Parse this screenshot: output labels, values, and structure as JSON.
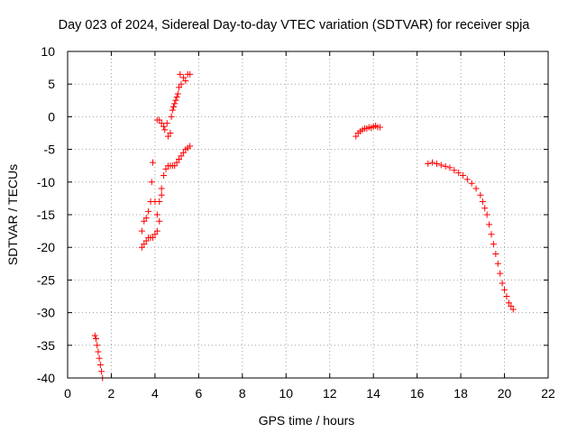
{
  "chart_data": {
    "type": "scatter",
    "title": "Day 023 of 2024, Sidereal Day-to-day VTEC variation (SDTVAR) for receiver spja",
    "xlabel": "GPS time / hours",
    "ylabel": "SDTVAR / TECUs",
    "xlim": [
      0,
      22
    ],
    "ylim": [
      -40,
      10
    ],
    "xticks": [
      0,
      2,
      4,
      6,
      8,
      10,
      12,
      14,
      16,
      18,
      20,
      22
    ],
    "yticks": [
      10,
      5,
      0,
      -5,
      -10,
      -15,
      -20,
      -25,
      -30,
      -35,
      -40
    ],
    "grid": true,
    "marker": "+",
    "color": "#ff0000",
    "series": [
      {
        "name": "segment-1",
        "x": [
          1.25,
          1.3,
          1.35,
          1.4,
          1.45,
          1.5,
          1.55,
          1.6
        ],
        "y": [
          -33.5,
          -34.0,
          -35.0,
          -36.0,
          -37.0,
          -38.0,
          -39.0,
          -40.0
        ]
      },
      {
        "name": "segment-2-lower",
        "x": [
          3.4,
          3.5,
          3.6,
          3.7,
          3.8,
          3.9,
          4.0,
          4.1,
          4.2,
          4.3,
          4.4,
          4.5,
          4.6,
          4.7,
          4.8,
          4.9,
          5.0,
          5.1,
          5.2,
          5.3,
          5.4,
          5.5,
          5.6
        ],
        "y": [
          -20.0,
          -19.5,
          -19.0,
          -18.5,
          -18.5,
          -18.5,
          -18.0,
          -17.5,
          -16.0,
          -12.0,
          -9.0,
          -8.0,
          -7.5,
          -7.5,
          -7.5,
          -7.5,
          -7.0,
          -6.5,
          -6.0,
          -5.5,
          -5.0,
          -4.8,
          -4.5
        ]
      },
      {
        "name": "segment-2-upper",
        "x": [
          3.4,
          3.5,
          3.6,
          3.7,
          3.8,
          3.85,
          3.9,
          4.0,
          4.1,
          4.2,
          4.3
        ],
        "y": [
          -17.5,
          -16.0,
          -15.5,
          -14.5,
          -13.0,
          -10.0,
          -7.0,
          -13.0,
          -15.0,
          -13.0,
          -11.0
        ]
      },
      {
        "name": "segment-2-high",
        "x": [
          4.1,
          4.2,
          4.3,
          4.4,
          4.45,
          4.55,
          4.6,
          4.7,
          4.75,
          4.8,
          4.85,
          4.9,
          4.95,
          5.0,
          5.05,
          5.1,
          5.15,
          5.2,
          5.3,
          5.4,
          5.5,
          5.6
        ],
        "y": [
          -0.5,
          -0.5,
          -1.0,
          -1.5,
          -2.0,
          -1.0,
          -3.0,
          -2.5,
          0.0,
          1.0,
          1.5,
          2.0,
          2.5,
          3.0,
          3.5,
          4.5,
          6.5,
          5.0,
          6.0,
          5.5,
          6.5,
          6.5
        ]
      },
      {
        "name": "segment-3",
        "x": [
          13.2,
          13.3,
          13.4,
          13.5,
          13.6,
          13.7,
          13.8,
          13.9,
          14.0,
          14.1,
          14.2,
          14.3
        ],
        "y": [
          -3.0,
          -2.5,
          -2.2,
          -2.0,
          -1.8,
          -1.8,
          -1.6,
          -1.7,
          -1.5,
          -1.4,
          -1.6,
          -1.6
        ]
      },
      {
        "name": "segment-4",
        "x": [
          16.5,
          16.7,
          16.9,
          17.1,
          17.3,
          17.5,
          17.7,
          17.9,
          18.1,
          18.3,
          18.5,
          18.7,
          18.9,
          19.0,
          19.1,
          19.2,
          19.3,
          19.4,
          19.5,
          19.6,
          19.7,
          19.8,
          19.9,
          20.0,
          20.1,
          20.2,
          20.3,
          20.4
        ],
        "y": [
          -7.2,
          -7.0,
          -7.2,
          -7.4,
          -7.6,
          -7.8,
          -8.2,
          -8.6,
          -9.0,
          -9.6,
          -10.2,
          -11.0,
          -12.0,
          -13.0,
          -14.0,
          -15.0,
          -16.5,
          -18.0,
          -19.5,
          -21.0,
          -22.5,
          -24.0,
          -25.5,
          -26.5,
          -27.5,
          -28.5,
          -29.0,
          -29.5
        ]
      }
    ]
  }
}
